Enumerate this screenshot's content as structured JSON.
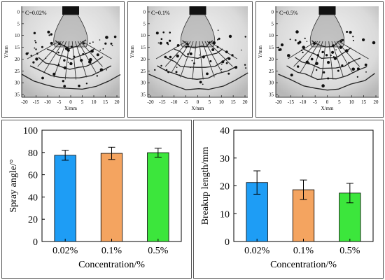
{
  "photos": [
    {
      "label": "C=0.02%"
    },
    {
      "label": "C=0.1%"
    },
    {
      "label": "C=0.5%"
    }
  ],
  "photo_axes": {
    "xlabel": "X/mm",
    "ylabel": "Y/mm",
    "xticks": [
      "-20",
      "-15",
      "-10",
      "-5",
      "0",
      "5",
      "10",
      "15",
      "20"
    ],
    "yticks": [
      "0",
      "5",
      "10",
      "15",
      "20",
      "25",
      "30",
      "35"
    ]
  },
  "chart_data": [
    {
      "type": "bar",
      "categories": [
        "0.02%",
        "0.1%",
        "0.5%"
      ],
      "values": [
        77.5,
        79.2,
        79.8
      ],
      "errors": [
        4.5,
        5.5,
        4.0
      ],
      "colors": [
        "#1E9DF5",
        "#F4A460",
        "#3CE63C"
      ],
      "xlabel": "Concentration/%",
      "ylabel": "Spray angle/°",
      "ylim": [
        0,
        100
      ],
      "yticks": [
        0,
        20,
        40,
        60,
        80,
        100
      ]
    },
    {
      "type": "bar",
      "categories": [
        "0.02%",
        "0.1%",
        "0.5%"
      ],
      "values": [
        21.2,
        18.6,
        17.4
      ],
      "errors": [
        4.2,
        3.5,
        3.5
      ],
      "colors": [
        "#1E9DF5",
        "#F4A460",
        "#3CE63C"
      ],
      "xlabel": "Concentration/%",
      "ylabel": "Breakup length/mm",
      "ylim": [
        0,
        40
      ],
      "yticks": [
        0,
        10,
        20,
        30,
        40
      ]
    }
  ]
}
